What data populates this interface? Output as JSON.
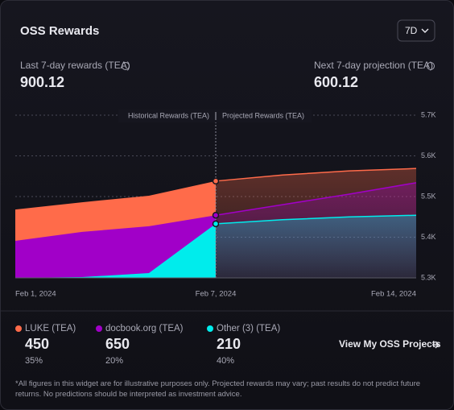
{
  "header": {
    "title": "OSS Rewards",
    "period": "7D"
  },
  "stats": [
    {
      "label": "Last 7-day rewards (TEA)",
      "value": "900.12"
    },
    {
      "label": "Next 7-day projection (TEA)",
      "value": "600.12"
    }
  ],
  "chart_data": {
    "type": "area",
    "annotations": [
      "Historical Rewards (TEA)",
      "Projected Rewards (TEA)"
    ],
    "split_category": "Feb 7, 2024",
    "categories": [
      "Feb 1, 2024",
      null,
      null,
      "Feb 7, 2024",
      null,
      null,
      "Feb 14, 2024"
    ],
    "series": [
      {
        "name": "LUKE (TEA)",
        "color": "#ff6b4a",
        "values": [
          5468,
          5486,
          5502,
          5538,
          5553,
          5563,
          5569
        ]
      },
      {
        "name": "docbook.org (TEA)",
        "color": "#a100c8",
        "values": [
          5391,
          5413,
          5427,
          5454,
          5480,
          5506,
          5534
        ]
      },
      {
        "name": "Other (3) (TEA)",
        "color": "#00ecec",
        "values": [
          5300,
          5302,
          5312,
          5433,
          5443,
          5450,
          5454
        ]
      }
    ],
    "ylim": [
      5300,
      5700
    ],
    "yticks": [
      {
        "value": 5300,
        "label": "5.3K"
      },
      {
        "value": 5400,
        "label": "5.4K"
      },
      {
        "value": 5500,
        "label": "5.5K"
      },
      {
        "value": 5600,
        "label": "5.6K"
      },
      {
        "value": 5700,
        "label": "5.7K"
      }
    ],
    "grid": true
  },
  "legend_stats": [
    {
      "amount": 450,
      "share": "35%"
    },
    {
      "amount": 650,
      "share": "20%"
    },
    {
      "amount": 210,
      "share": "40%"
    }
  ],
  "link": "View My OSS Projects",
  "footnote": "*All figures in this widget are for illustrative purposes only. Projected rewards may vary; past results do not predict future returns. No predictions should be interpreted as investment advice."
}
